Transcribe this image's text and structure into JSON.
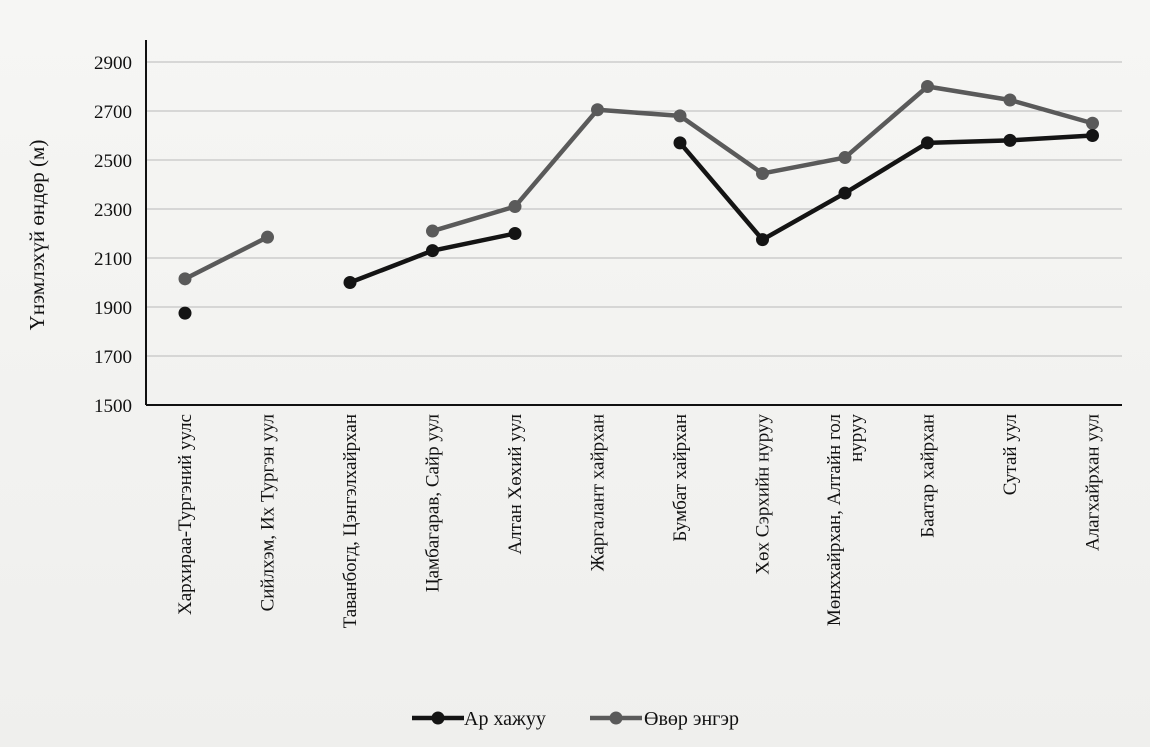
{
  "chart_data": {
    "type": "line",
    "ylabel": "Үнэмлэхүй өндөр (м)",
    "xlabel": "",
    "ylim": [
      1500,
      2900
    ],
    "yticks": [
      1500,
      1700,
      1900,
      2100,
      2300,
      2500,
      2700,
      2900
    ],
    "grid": true,
    "legend_position": "bottom",
    "categories": [
      [
        "Хархираа-Тургэний уулс"
      ],
      [
        "Сийлхэм, Их Тургэн уул"
      ],
      [
        "Таванбогд, Цэнгэлхайрхан"
      ],
      [
        "Цамбагарав, Сайр уул"
      ],
      [
        "Алтан Хөхий уул"
      ],
      [
        "Жаргалант хайрхан"
      ],
      [
        "Бумбат хайрхан"
      ],
      [
        "Хөх Сэрхийн нуруу"
      ],
      [
        "Мөнххайрхан, Алтайн гол",
        "нуруу"
      ],
      [
        "Баатар хайрхан"
      ],
      [
        "Сутай уул"
      ],
      [
        "Алагхайрхан уул"
      ]
    ],
    "series": [
      {
        "name": "Ар хажуу",
        "color": "#141414",
        "values": [
          1875,
          null,
          2000,
          2130,
          2200,
          null,
          2570,
          2175,
          2365,
          2570,
          2580,
          2600
        ]
      },
      {
        "name": "Өвөр энгэр",
        "color": "#5a5a5a",
        "values": [
          2015,
          2185,
          null,
          2210,
          2310,
          2705,
          2680,
          2445,
          2510,
          2800,
          2745,
          2650
        ]
      }
    ]
  }
}
